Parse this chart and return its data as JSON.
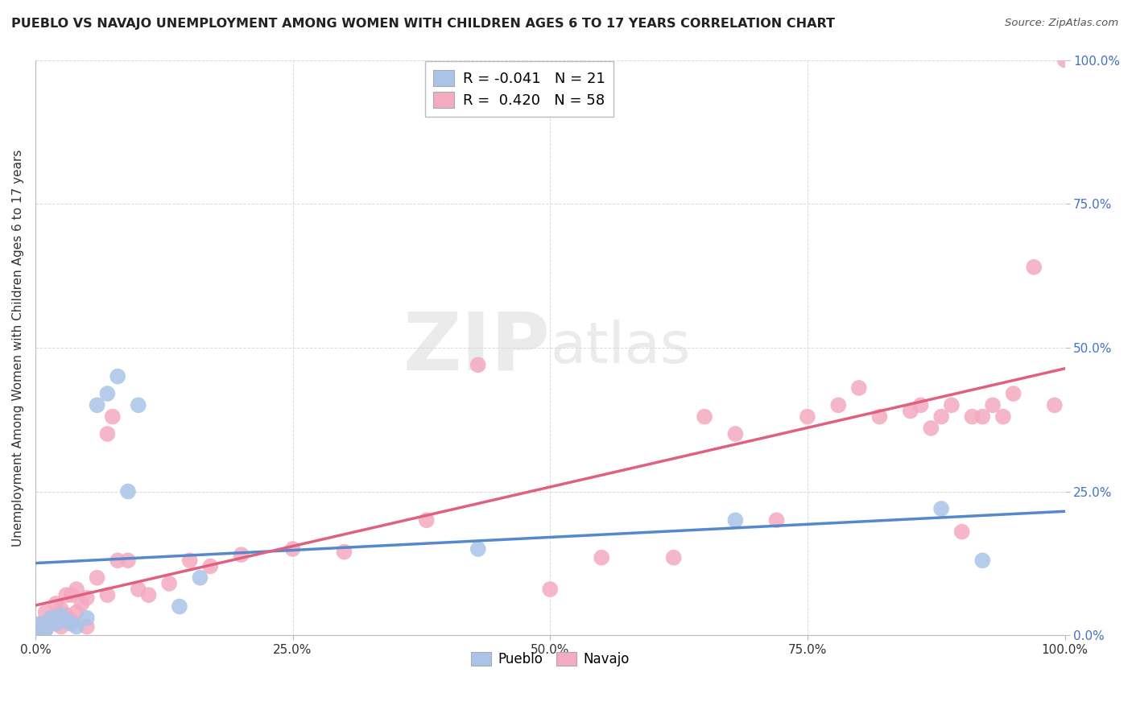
{
  "title": "PUEBLO VS NAVAJO UNEMPLOYMENT AMONG WOMEN WITH CHILDREN AGES 6 TO 17 YEARS CORRELATION CHART",
  "source": "Source: ZipAtlas.com",
  "ylabel": "Unemployment Among Women with Children Ages 6 to 17 years",
  "xlim": [
    0,
    1
  ],
  "ylim": [
    0,
    1
  ],
  "xticks": [
    0.0,
    0.25,
    0.5,
    0.75,
    1.0
  ],
  "yticks": [
    0.0,
    0.25,
    0.5,
    0.75,
    1.0
  ],
  "xticklabels": [
    "0.0%",
    "25.0%",
    "50.0%",
    "75.0%",
    "100.0%"
  ],
  "yticklabels": [
    "0.0%",
    "25.0%",
    "50.0%",
    "75.0%",
    "100.0%"
  ],
  "ytick_color": "#4472c4",
  "xtick_color": "#333333",
  "pueblo_color": "#aac4e8",
  "navajo_color": "#f4aac0",
  "pueblo_line_color": "#5588cc",
  "navajo_line_color": "#e06080",
  "legend_r_pueblo": "-0.041",
  "legend_n_pueblo": "21",
  "legend_r_navajo": "0.420",
  "legend_n_navajo": "58",
  "watermark_zip": "ZIP",
  "watermark_atlas": "atlas",
  "watermark_color": "#cccccc",
  "grid_color": "#cccccc",
  "bg_color": "#ffffff",
  "pueblo_x": [
    0.005,
    0.005,
    0.01,
    0.015,
    0.02,
    0.025,
    0.03,
    0.035,
    0.04,
    0.05,
    0.06,
    0.07,
    0.08,
    0.09,
    0.1,
    0.14,
    0.16,
    0.43,
    0.68,
    0.88,
    0.92
  ],
  "pueblo_y": [
    0.005,
    0.02,
    0.01,
    0.03,
    0.02,
    0.035,
    0.025,
    0.02,
    0.015,
    0.03,
    0.4,
    0.42,
    0.45,
    0.25,
    0.4,
    0.05,
    0.1,
    0.15,
    0.2,
    0.22,
    0.13
  ],
  "navajo_x": [
    0.005,
    0.005,
    0.01,
    0.01,
    0.015,
    0.02,
    0.02,
    0.025,
    0.025,
    0.03,
    0.03,
    0.035,
    0.035,
    0.04,
    0.04,
    0.045,
    0.05,
    0.05,
    0.06,
    0.07,
    0.07,
    0.075,
    0.08,
    0.09,
    0.1,
    0.11,
    0.13,
    0.15,
    0.17,
    0.2,
    0.25,
    0.3,
    0.38,
    0.43,
    0.5,
    0.55,
    0.62,
    0.65,
    0.68,
    0.72,
    0.75,
    0.78,
    0.8,
    0.82,
    0.85,
    0.86,
    0.87,
    0.88,
    0.89,
    0.9,
    0.91,
    0.92,
    0.93,
    0.94,
    0.95,
    0.97,
    0.99,
    1.0
  ],
  "navajo_y": [
    0.005,
    0.02,
    0.01,
    0.04,
    0.03,
    0.025,
    0.055,
    0.045,
    0.015,
    0.035,
    0.07,
    0.025,
    0.07,
    0.04,
    0.08,
    0.055,
    0.065,
    0.015,
    0.1,
    0.07,
    0.35,
    0.38,
    0.13,
    0.13,
    0.08,
    0.07,
    0.09,
    0.13,
    0.12,
    0.14,
    0.15,
    0.145,
    0.2,
    0.47,
    0.08,
    0.135,
    0.135,
    0.38,
    0.35,
    0.2,
    0.38,
    0.4,
    0.43,
    0.38,
    0.39,
    0.4,
    0.36,
    0.38,
    0.4,
    0.18,
    0.38,
    0.38,
    0.4,
    0.38,
    0.42,
    0.64,
    0.4,
    1.0
  ]
}
